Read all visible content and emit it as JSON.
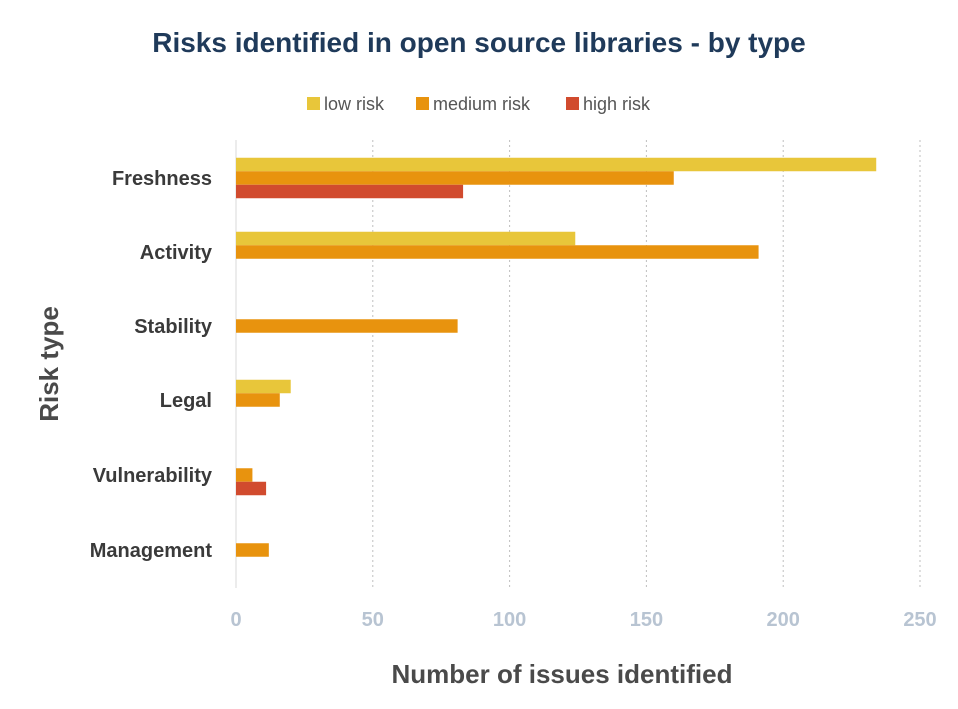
{
  "colors": {
    "low risk": "#E8C63A",
    "medium risk": "#E8930E",
    "high risk": "#D14B2E",
    "title": "#1F3A5A",
    "axis_title": "#4A4A4A",
    "category_label": "#3A3A3A",
    "tick_label": "#B8C4D2",
    "grid": "#BFBFBF"
  },
  "chart_data": {
    "type": "bar",
    "orientation": "horizontal",
    "title": "Risks identified in open source libraries - by type",
    "xlabel": "Number of issues identified",
    "ylabel": "Risk type",
    "categories": [
      "Freshness",
      "Activity",
      "Stability",
      "Legal",
      "Vulnerability",
      "Management"
    ],
    "series": [
      {
        "name": "low risk",
        "values": [
          234,
          124,
          0,
          20,
          0,
          0
        ]
      },
      {
        "name": "medium risk",
        "values": [
          160,
          191,
          81,
          16,
          6,
          12
        ]
      },
      {
        "name": "high risk",
        "values": [
          83,
          0,
          0,
          0,
          11,
          0
        ]
      }
    ],
    "xlim": [
      0,
      250
    ],
    "xticks": [
      0,
      50,
      100,
      150,
      200,
      250
    ],
    "grid": "vertical dotted",
    "legend": "top-center"
  }
}
